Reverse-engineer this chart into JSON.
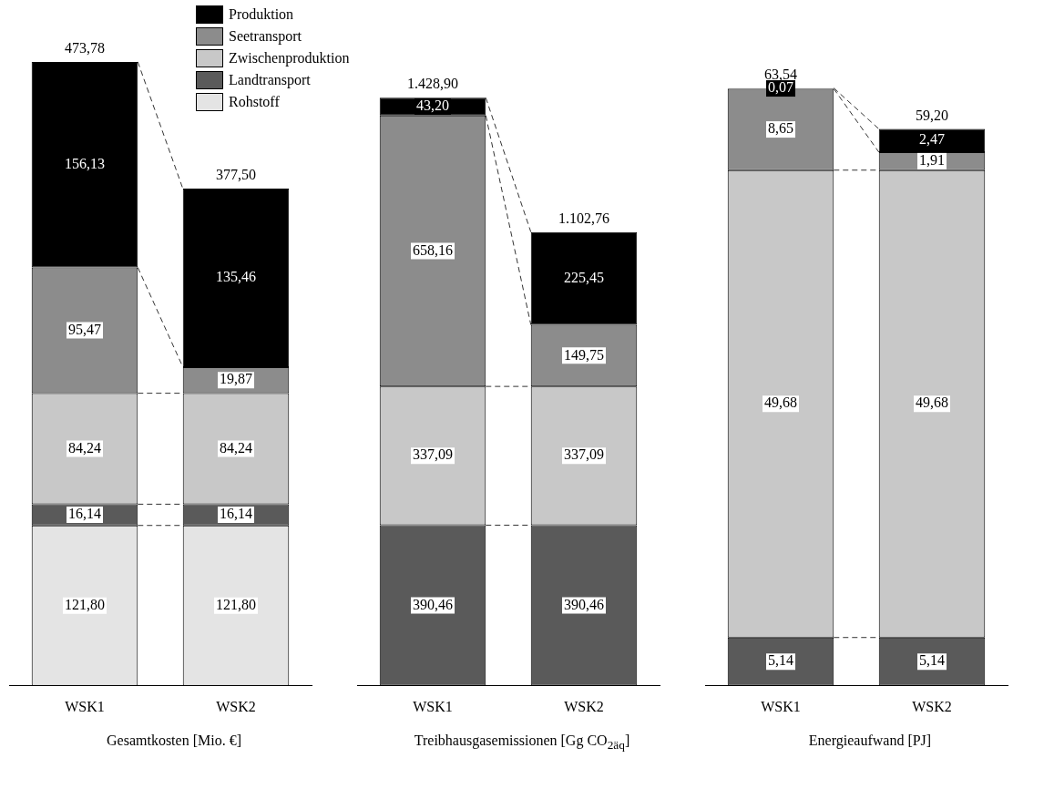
{
  "chart_data": [
    {
      "type": "bar",
      "xlabel": "Gesamtkosten [Mio. €]",
      "categories": [
        "WSK1",
        "WSK2"
      ],
      "stacked": true,
      "grid": false,
      "legend": "top right",
      "series": [
        {
          "name": "Rohstoff",
          "color": "#e4e4e4",
          "values": [
            121.8,
            121.8
          ],
          "value_labels": [
            "121,80",
            "121,80"
          ]
        },
        {
          "name": "Landtransport",
          "color": "#5a5a5a",
          "values": [
            16.14,
            16.14
          ],
          "value_labels": [
            "16,14",
            "16,14"
          ]
        },
        {
          "name": "Zwischenproduktion",
          "color": "#c8c8c8",
          "values": [
            84.24,
            84.24
          ],
          "value_labels": [
            "84,24",
            "84,24"
          ]
        },
        {
          "name": "Seetransport",
          "color": "#8c8c8c",
          "values": [
            95.47,
            19.87
          ],
          "value_labels": [
            "95,47",
            "19,87"
          ]
        },
        {
          "name": "Produktion",
          "color": "#000000",
          "values": [
            156.13,
            135.46
          ],
          "value_labels": [
            "156,13",
            "135,46"
          ]
        }
      ],
      "totals": [
        "473,78",
        "377,50"
      ]
    },
    {
      "type": "bar",
      "xlabel": "Treibhausgasemissionen [Gg CO$_{2äq}$]",
      "categories": [
        "WSK1",
        "WSK2"
      ],
      "stacked": true,
      "grid": false,
      "series": [
        {
          "color": "#5a5a5a",
          "values": [
            390.46,
            390.46
          ],
          "value_labels": [
            "390,46",
            "390,46"
          ]
        },
        {
          "color": "#c8c8c8",
          "values": [
            337.09,
            337.09
          ],
          "value_labels": [
            "337,09",
            "337,09"
          ]
        },
        {
          "color": "#8c8c8c",
          "values": [
            658.16,
            149.75
          ],
          "value_labels": [
            "658,16",
            "149,75"
          ]
        },
        {
          "color": "#000000",
          "values": [
            43.2,
            225.45
          ],
          "value_labels": [
            "43,20",
            "225,45"
          ]
        }
      ],
      "totals": [
        "1.428,90",
        "1.102,76"
      ]
    },
    {
      "type": "bar",
      "xlabel": "Energieaufwand [PJ]",
      "categories": [
        "WSK1",
        "WSK2"
      ],
      "stacked": true,
      "grid": false,
      "series": [
        {
          "color": "#5a5a5a",
          "values": [
            5.14,
            5.14
          ],
          "value_labels": [
            "5,14",
            "5,14"
          ]
        },
        {
          "color": "#c8c8c8",
          "values": [
            49.68,
            49.68
          ],
          "value_labels": [
            "49,68",
            "49,68"
          ]
        },
        {
          "color": "#8c8c8c",
          "values": [
            8.65,
            1.91
          ],
          "value_labels": [
            "8,65",
            "1,91"
          ]
        },
        {
          "color": "#000000",
          "values": [
            0.07,
            2.47
          ],
          "value_labels": [
            "0,07",
            "2,47"
          ]
        }
      ],
      "totals": [
        "63,54",
        "59,20"
      ]
    }
  ]
}
